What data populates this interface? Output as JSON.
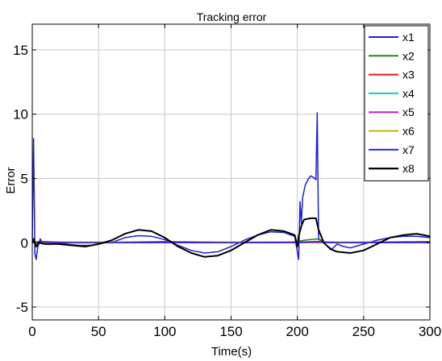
{
  "chart_data": {
    "type": "line",
    "title": "Tracking error",
    "xlabel": "Time(s)",
    "ylabel": "Error",
    "xlim": [
      0,
      300
    ],
    "ylim": [
      -6,
      17
    ],
    "xticks": [
      0,
      50,
      100,
      150,
      200,
      250,
      300
    ],
    "yticks": [
      -5,
      0,
      5,
      10,
      15
    ],
    "grid": true,
    "legend_position": "top-right",
    "series": [
      {
        "name": "x1",
        "color": "#1f1fd6",
        "points": [
          [
            0,
            0
          ],
          [
            1,
            8.1
          ],
          [
            2,
            -0.9
          ],
          [
            3,
            -1.3
          ],
          [
            4,
            -0.4
          ],
          [
            6,
            0.3
          ],
          [
            8,
            -0.1
          ],
          [
            15,
            0.0
          ],
          [
            25,
            -0.1
          ],
          [
            35,
            -0.2
          ],
          [
            45,
            -0.2
          ],
          [
            55,
            0.0
          ],
          [
            62,
            0.1
          ],
          [
            70,
            0.4
          ],
          [
            80,
            0.55
          ],
          [
            90,
            0.5
          ],
          [
            100,
            0.25
          ],
          [
            110,
            -0.2
          ],
          [
            120,
            -0.6
          ],
          [
            130,
            -0.8
          ],
          [
            140,
            -0.7
          ],
          [
            150,
            -0.3
          ],
          [
            160,
            0.2
          ],
          [
            170,
            0.6
          ],
          [
            180,
            0.85
          ],
          [
            190,
            0.8
          ],
          [
            198,
            0.5
          ],
          [
            201,
            -1.3
          ],
          [
            202,
            3.2
          ],
          [
            203,
            1.5
          ],
          [
            204,
            3.5
          ],
          [
            206,
            4.5
          ],
          [
            208,
            4.9
          ],
          [
            210,
            5.2
          ],
          [
            212,
            5.1
          ],
          [
            214,
            4.9
          ],
          [
            215,
            10.1
          ],
          [
            216,
            0.3
          ],
          [
            218,
            0.2
          ],
          [
            222,
            -0.2
          ],
          [
            226,
            -0.5
          ],
          [
            230,
            -0.1
          ],
          [
            235,
            -0.3
          ],
          [
            240,
            -0.4
          ],
          [
            250,
            -0.1
          ],
          [
            260,
            0.2
          ],
          [
            270,
            0.4
          ],
          [
            280,
            0.5
          ],
          [
            290,
            0.5
          ],
          [
            300,
            0.4
          ]
        ]
      },
      {
        "name": "x2",
        "color": "#1a8c1a",
        "points": [
          [
            0,
            0
          ],
          [
            1,
            0.3
          ],
          [
            2,
            0.1
          ],
          [
            5,
            0.1
          ],
          [
            20,
            0.05
          ],
          [
            60,
            0.05
          ],
          [
            100,
            0.1
          ],
          [
            150,
            0.05
          ],
          [
            195,
            0.05
          ],
          [
            200,
            0.1
          ],
          [
            205,
            0.2
          ],
          [
            210,
            0.25
          ],
          [
            215,
            0.3
          ],
          [
            220,
            0.05
          ],
          [
            250,
            0.05
          ],
          [
            300,
            0.1
          ]
        ]
      },
      {
        "name": "x3",
        "color": "#e01a1a",
        "points": [
          [
            0,
            0
          ],
          [
            1,
            0.2
          ],
          [
            3,
            0.0
          ],
          [
            100,
            0.0
          ],
          [
            200,
            0.0
          ],
          [
            300,
            0.0
          ]
        ]
      },
      {
        "name": "x4",
        "color": "#22c4c4",
        "points": [
          [
            0,
            0
          ],
          [
            2,
            0.1
          ],
          [
            5,
            0.0
          ],
          [
            150,
            0.0
          ],
          [
            300,
            0.0
          ]
        ]
      },
      {
        "name": "x5",
        "color": "#cc1ad6",
        "points": [
          [
            0,
            0
          ],
          [
            2,
            0.05
          ],
          [
            5,
            0.0
          ],
          [
            150,
            0.0
          ],
          [
            300,
            0.0
          ]
        ]
      },
      {
        "name": "x6",
        "color": "#c8b400",
        "points": [
          [
            0,
            0
          ],
          [
            2,
            0.15
          ],
          [
            5,
            0.05
          ],
          [
            60,
            0.05
          ],
          [
            150,
            0.05
          ],
          [
            200,
            0.05
          ],
          [
            300,
            0.05
          ]
        ]
      },
      {
        "name": "x7",
        "color": "#1f1fd6",
        "points": [
          [
            0,
            0
          ],
          [
            1,
            0.2
          ],
          [
            2,
            -0.1
          ],
          [
            5,
            0.1
          ],
          [
            30,
            0.0
          ],
          [
            60,
            0.0
          ],
          [
            100,
            0.05
          ],
          [
            150,
            0.0
          ],
          [
            200,
            0.05
          ],
          [
            215,
            0.1
          ],
          [
            230,
            0.0
          ],
          [
            300,
            0.05
          ]
        ]
      },
      {
        "name": "x8",
        "color": "#000000",
        "points": [
          [
            0,
            0
          ],
          [
            1,
            0.3
          ],
          [
            3,
            -0.3
          ],
          [
            5,
            0.0
          ],
          [
            10,
            -0.1
          ],
          [
            20,
            -0.1
          ],
          [
            30,
            -0.2
          ],
          [
            40,
            -0.3
          ],
          [
            50,
            -0.1
          ],
          [
            60,
            0.2
          ],
          [
            70,
            0.7
          ],
          [
            80,
            1.0
          ],
          [
            90,
            0.9
          ],
          [
            100,
            0.4
          ],
          [
            110,
            -0.3
          ],
          [
            120,
            -0.8
          ],
          [
            130,
            -1.1
          ],
          [
            140,
            -1.0
          ],
          [
            150,
            -0.6
          ],
          [
            160,
            0.0
          ],
          [
            170,
            0.6
          ],
          [
            180,
            1.0
          ],
          [
            190,
            0.9
          ],
          [
            198,
            0.6
          ],
          [
            200,
            -0.3
          ],
          [
            201,
            0.5
          ],
          [
            203,
            1.3
          ],
          [
            205,
            1.8
          ],
          [
            210,
            1.9
          ],
          [
            214,
            1.9
          ],
          [
            216,
            1.0
          ],
          [
            220,
            0.0
          ],
          [
            225,
            -0.5
          ],
          [
            230,
            -0.7
          ],
          [
            240,
            -0.8
          ],
          [
            250,
            -0.6
          ],
          [
            260,
            -0.1
          ],
          [
            270,
            0.4
          ],
          [
            280,
            0.6
          ],
          [
            290,
            0.7
          ],
          [
            300,
            0.5
          ]
        ]
      }
    ]
  }
}
